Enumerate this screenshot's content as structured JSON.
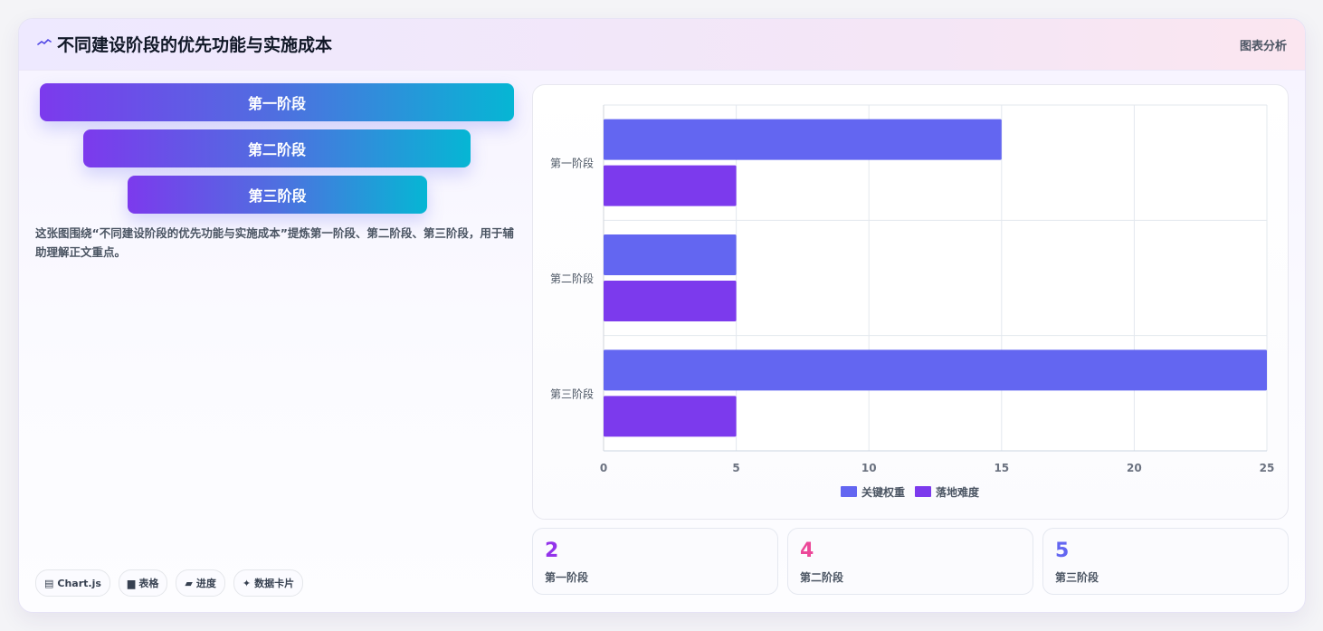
{
  "header": {
    "icon": "wave-icon",
    "title": "不同建设阶段的优先功能与实施成本",
    "tag": "图表分析"
  },
  "pills": [
    {
      "label": "第一阶段"
    },
    {
      "label": "第二阶段"
    },
    {
      "label": "第三阶段"
    }
  ],
  "description": "这张图围绕“不同建设阶段的优先功能与实施成本”提炼第一阶段、第二阶段、第三阶段，用于辅助理解正文重点。",
  "chips": [
    {
      "icon": "chart-icon",
      "glyph": "▤",
      "label": "Chart.js"
    },
    {
      "icon": "table-icon",
      "glyph": "▆",
      "label": "表格"
    },
    {
      "icon": "progress-icon",
      "glyph": "▰",
      "label": "进度"
    },
    {
      "icon": "sparkle-icon",
      "glyph": "✦",
      "label": "数据卡片"
    }
  ],
  "chart_data": {
    "type": "bar",
    "orientation": "horizontal",
    "categories": [
      "第一阶段",
      "第二阶段",
      "第三阶段"
    ],
    "series": [
      {
        "name": "关键权重",
        "color": "#6366f1",
        "values": [
          15,
          5,
          25
        ]
      },
      {
        "name": "落地难度",
        "color": "#7c3aed",
        "values": [
          5,
          5,
          5
        ]
      }
    ],
    "xlim": [
      0,
      25
    ],
    "xticks": [
      "0",
      "5",
      "10",
      "15",
      "20",
      "25"
    ],
    "grid": true,
    "legend": "bottom"
  },
  "stats": [
    {
      "value": "2",
      "label": "第一阶段",
      "color": "#9333ea"
    },
    {
      "value": "4",
      "label": "第二阶段",
      "color": "#ec4899"
    },
    {
      "value": "5",
      "label": "第三阶段",
      "color": "#6366f1"
    }
  ]
}
